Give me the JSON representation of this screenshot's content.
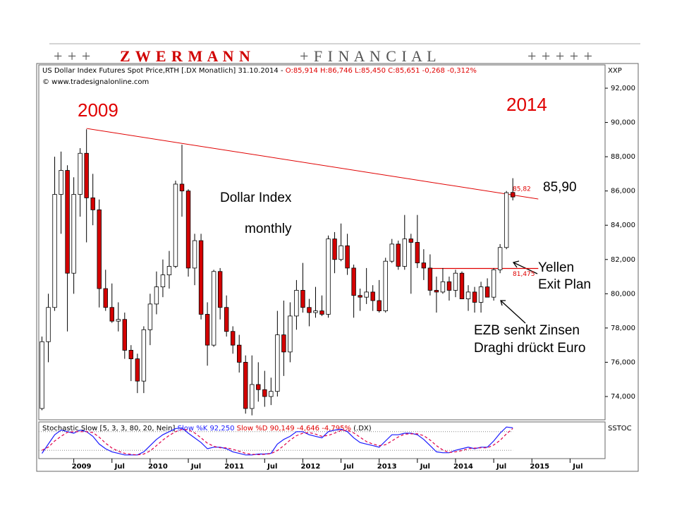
{
  "banner": [
    "+ + +",
    "Z W E R M A N N",
    "+ F I N A N C I A L",
    "+ + + + +"
  ],
  "header": {
    "title": "US Dollar Index Futures Spot Price,RTH [.DX  Monatlich] 31.10.2014 -",
    "quote": "O:85,914 H:86,746 L:85,450 C:85,651 -0,268 -0,312%",
    "copyright": "© www.tradesignalonline.com",
    "axis_name": "XXP"
  },
  "chart_data": [
    {
      "type": "candlestick",
      "x": [
        "2008-08",
        "2008-09",
        "2008-10",
        "2008-11",
        "2008-12",
        "2009-01",
        "2009-02",
        "2009-03",
        "2009-04",
        "2009-05",
        "2009-06",
        "2009-07",
        "2009-08",
        "2009-09",
        "2009-10",
        "2009-11",
        "2009-12",
        "2010-01",
        "2010-02",
        "2010-03",
        "2010-04",
        "2010-05",
        "2010-06",
        "2010-07",
        "2010-08",
        "2010-09",
        "2010-10",
        "2010-11",
        "2010-12",
        "2011-01",
        "2011-02",
        "2011-03",
        "2011-04",
        "2011-05",
        "2011-06",
        "2011-07",
        "2011-08",
        "2011-09",
        "2011-10",
        "2011-11",
        "2011-12",
        "2012-01",
        "2012-02",
        "2012-03",
        "2012-04",
        "2012-05",
        "2012-06",
        "2012-07",
        "2012-08",
        "2012-09",
        "2012-10",
        "2012-11",
        "2012-12",
        "2013-01",
        "2013-02",
        "2013-03",
        "2013-04",
        "2013-05",
        "2013-06",
        "2013-07",
        "2013-08",
        "2013-09",
        "2013-10",
        "2013-11",
        "2013-12",
        "2014-01",
        "2014-02",
        "2014-03",
        "2014-04",
        "2014-05",
        "2014-06",
        "2014-07",
        "2014-08",
        "2014-09",
        "2014-10"
      ],
      "open": [
        73.3,
        77.2,
        79.2,
        85.8,
        87.2,
        81.2,
        85.8,
        88.2,
        85.6,
        84.9,
        80.3,
        79.2,
        78.4,
        78.5,
        76.7,
        76.2,
        74.9,
        77.9,
        79.4,
        80.4,
        81.1,
        81.6,
        86.4,
        86.0,
        81.5,
        83.1,
        78.8,
        77.0,
        81.3,
        79.2,
        77.8,
        77.0,
        76.0,
        73.3,
        74.7,
        74.4,
        74.0,
        74.3,
        77.6,
        76.6,
        78.7,
        80.2,
        79.2,
        78.9,
        79.0,
        78.8,
        83.2,
        82.0,
        82.8,
        81.5,
        79.9,
        79.8,
        80.1,
        79.6,
        79.0,
        81.9,
        82.9,
        81.6,
        83.2,
        83.0,
        81.8,
        81.5,
        80.2,
        80.1,
        80.7,
        80.2,
        81.2,
        79.7,
        80.1,
        79.5,
        80.4,
        79.8,
        81.4,
        82.7,
        85.914
      ],
      "high": [
        77.5,
        80.0,
        88.0,
        88.3,
        87.5,
        86.8,
        88.5,
        89.6,
        87.0,
        85.5,
        81.4,
        80.6,
        79.5,
        78.9,
        77.0,
        76.5,
        78.1,
        80.0,
        81.3,
        82.0,
        82.5,
        86.6,
        88.7,
        86.1,
        83.5,
        83.5,
        79.5,
        81.4,
        81.5,
        79.9,
        78.1,
        77.6,
        76.4,
        76.4,
        76.0,
        75.5,
        75.1,
        79.0,
        79.6,
        79.5,
        80.8,
        81.8,
        79.7,
        80.4,
        79.9,
        83.4,
        83.6,
        84.1,
        83.5,
        81.7,
        80.3,
        81.5,
        80.5,
        80.8,
        82.1,
        83.2,
        83.1,
        84.6,
        83.5,
        84.6,
        82.6,
        82.3,
        81.0,
        81.5,
        81.0,
        81.4,
        81.3,
        80.5,
        80.4,
        80.7,
        80.9,
        81.5,
        82.9,
        86.0,
        86.746
      ],
      "low": [
        73.2,
        76.0,
        79.0,
        83.5,
        77.8,
        80.0,
        84.5,
        83.0,
        84.0,
        79.2,
        79.0,
        78.3,
        77.8,
        76.2,
        74.9,
        74.2,
        74.2,
        77.0,
        78.8,
        79.8,
        80.3,
        81.5,
        84.5,
        81.0,
        80.5,
        78.5,
        75.8,
        76.9,
        78.5,
        77.5,
        76.5,
        75.4,
        73.0,
        72.9,
        73.7,
        73.4,
        73.5,
        74.0,
        75.2,
        76.0,
        77.9,
        78.9,
        78.1,
        78.6,
        78.7,
        78.6,
        81.2,
        81.9,
        81.1,
        78.6,
        79.0,
        79.4,
        79.0,
        78.9,
        78.9,
        81.8,
        81.4,
        81.4,
        80.0,
        81.5,
        80.8,
        79.9,
        78.9,
        80.0,
        79.6,
        79.8,
        79.7,
        79.0,
        78.9,
        78.9,
        79.8,
        79.6,
        81.2,
        82.6,
        85.45
      ],
      "close": [
        77.2,
        79.2,
        85.8,
        87.2,
        81.2,
        85.8,
        88.2,
        85.6,
        84.9,
        80.3,
        79.2,
        78.4,
        78.5,
        76.7,
        76.2,
        74.9,
        77.9,
        79.4,
        80.4,
        81.1,
        81.6,
        86.4,
        86.0,
        81.5,
        83.1,
        78.8,
        77.0,
        81.3,
        79.2,
        77.8,
        77.0,
        76.0,
        73.3,
        74.7,
        74.4,
        74.0,
        74.3,
        77.6,
        76.6,
        78.7,
        80.2,
        79.2,
        78.9,
        79.0,
        78.8,
        83.2,
        82.0,
        82.8,
        81.5,
        79.9,
        79.8,
        80.1,
        79.6,
        79.0,
        81.9,
        82.9,
        81.6,
        83.2,
        83.0,
        81.8,
        81.5,
        80.2,
        80.1,
        80.7,
        80.2,
        81.2,
        79.7,
        80.1,
        79.5,
        80.4,
        79.8,
        81.4,
        82.7,
        85.9,
        85.651
      ],
      "up_color": "#ffffff",
      "down_color": "#d40000",
      "xlim": [
        "2008-08",
        "2015-12"
      ],
      "xticks": [
        {
          "value": "2009-01",
          "label": "2009"
        },
        {
          "value": "2009-07",
          "label": "Jul"
        },
        {
          "value": "2010-01",
          "label": "2010"
        },
        {
          "value": "2010-07",
          "label": "Jul"
        },
        {
          "value": "2011-01",
          "label": "2011"
        },
        {
          "value": "2011-07",
          "label": "Jul"
        },
        {
          "value": "2012-01",
          "label": "2012"
        },
        {
          "value": "2012-07",
          "label": "Jul"
        },
        {
          "value": "2013-01",
          "label": "2013"
        },
        {
          "value": "2013-07",
          "label": "Jul"
        },
        {
          "value": "2014-01",
          "label": "2014"
        },
        {
          "value": "2014-07",
          "label": "Jul"
        },
        {
          "value": "2015-01",
          "label": "2015"
        },
        {
          "value": "2015-07",
          "label": "Jul"
        }
      ],
      "ylim": [
        72.64,
        93.36
      ],
      "yticks": [
        {
          "value": 74,
          "label": "74,000"
        },
        {
          "value": 76,
          "label": "76,000"
        },
        {
          "value": 78,
          "label": "78,000"
        },
        {
          "value": 80,
          "label": "80,000"
        },
        {
          "value": 82,
          "label": "82,000"
        },
        {
          "value": 84,
          "label": "84,000"
        },
        {
          "value": 86,
          "label": "86,000"
        },
        {
          "value": 88,
          "label": "88,000"
        },
        {
          "value": 90,
          "label": "90,000"
        },
        {
          "value": 92,
          "label": "92,000"
        }
      ],
      "trendline": {
        "label": "85,82",
        "color": "#e00000",
        "start": {
          "x": "2009-03",
          "y": 89.65
        },
        "end": {
          "x": "2015-02",
          "y": 85.53
        }
      },
      "level": {
        "label": "81,475",
        "color": "#e00000",
        "value": 81.475,
        "start": "2013-09",
        "end": "2015-02"
      },
      "annotations": [
        "2009",
        "2014",
        "Dollar Index",
        "monthly",
        "85,90",
        "Yellen",
        "Exit Plan",
        "EZB senkt Zinsen",
        "Draghi drückt Euro"
      ]
    },
    {
      "type": "line",
      "title": [
        "Stochastic Slow [5, 3, 3, 80, 20, Nein]",
        "Slow %K 92,250",
        "Slow %D 90,149 -4,646 -4,795%",
        "(.DX)"
      ],
      "axis_name": "SSTOC",
      "ylim": [
        0,
        100
      ],
      "levels": [
        80,
        20
      ],
      "series": [
        {
          "name": "Slow %K",
          "color": "#1a1aff",
          "dash": false,
          "values": [
            10,
            40,
            70,
            85,
            80,
            75,
            85,
            80,
            65,
            40,
            25,
            15,
            10,
            5,
            5,
            5,
            15,
            35,
            55,
            70,
            80,
            90,
            92,
            75,
            60,
            45,
            25,
            30,
            30,
            25,
            15,
            10,
            5,
            5,
            8,
            8,
            10,
            40,
            55,
            65,
            80,
            80,
            70,
            65,
            60,
            80,
            85,
            88,
            80,
            60,
            45,
            40,
            35,
            30,
            50,
            70,
            70,
            75,
            75,
            70,
            55,
            35,
            15,
            12,
            12,
            20,
            25,
            30,
            25,
            30,
            30,
            50,
            75,
            95,
            92.25
          ]
        },
        {
          "name": "Slow %D",
          "color": "#e0004a",
          "dash": true,
          "values": [
            20,
            30,
            50,
            65,
            78,
            80,
            80,
            80,
            77,
            62,
            43,
            27,
            17,
            10,
            7,
            5,
            8,
            18,
            35,
            53,
            68,
            80,
            87,
            86,
            76,
            60,
            43,
            33,
            28,
            28,
            23,
            17,
            10,
            7,
            6,
            7,
            9,
            19,
            35,
            53,
            67,
            75,
            77,
            72,
            65,
            68,
            75,
            84,
            84,
            76,
            62,
            48,
            40,
            35,
            38,
            50,
            63,
            72,
            73,
            73,
            67,
            53,
            35,
            21,
            13,
            15,
            19,
            25,
            27,
            28,
            28,
            37,
            52,
            73,
            90.149
          ]
        }
      ]
    }
  ]
}
